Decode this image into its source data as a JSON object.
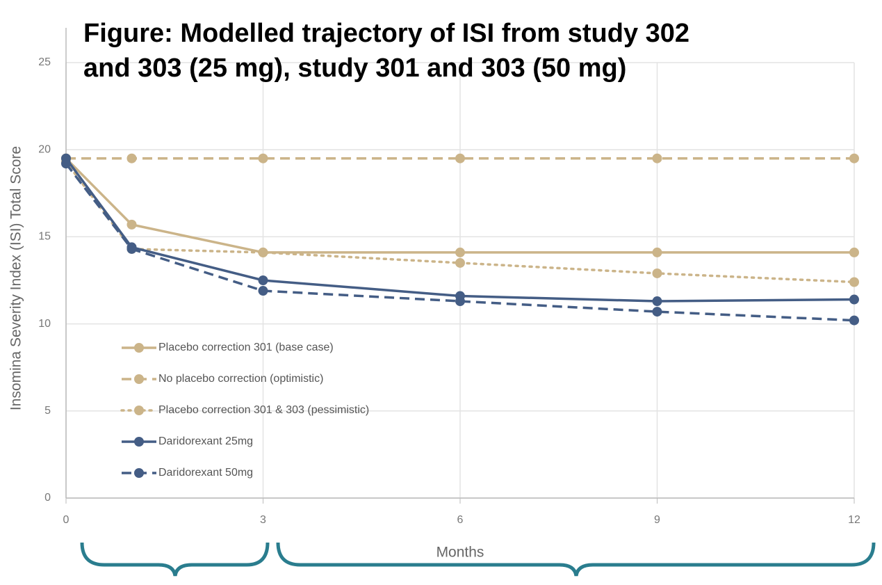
{
  "chart_data": {
    "type": "line",
    "title": [
      "Figure: Modelled trajectory of ISI from study 302",
      "and 303 (25 mg), study 301 and 303 (50 mg)"
    ],
    "x_label": "Months",
    "y_label": "Insomina Severity Index (ISI) Total Score",
    "x": [
      0,
      1,
      3,
      6,
      9,
      12
    ],
    "xlim": [
      0,
      12
    ],
    "xticks": [
      0,
      3,
      6,
      9,
      12
    ],
    "ylim": [
      0,
      25
    ],
    "yticks": [
      0,
      5,
      10,
      15,
      20,
      25
    ],
    "grid": true,
    "series": [
      {
        "name": "Placebo correction 301 (base case)",
        "color": "#cbb489",
        "dash": "solid",
        "values": [
          19.5,
          15.7,
          14.1,
          14.1,
          14.1,
          14.1
        ]
      },
      {
        "name": "No placebo correction (optimistic)",
        "color": "#cbb489",
        "dash": "dashed",
        "values": [
          19.5,
          19.5,
          19.5,
          19.5,
          19.5,
          19.5
        ]
      },
      {
        "name": "Placebo correction 301 & 303 (pessimistic)",
        "color": "#cbb489",
        "dash": "dotted",
        "values": [
          19.3,
          14.3,
          14.1,
          13.5,
          12.9,
          12.4
        ]
      },
      {
        "name": "Daridorexant 25mg",
        "color": "#445d85",
        "dash": "solid",
        "values": [
          19.5,
          14.4,
          12.5,
          11.6,
          11.3,
          11.4
        ]
      },
      {
        "name": "Daridorexant 50mg",
        "color": "#445d85",
        "dash": "dashed",
        "values": [
          19.2,
          14.3,
          11.9,
          11.3,
          10.7,
          10.2
        ]
      }
    ]
  }
}
